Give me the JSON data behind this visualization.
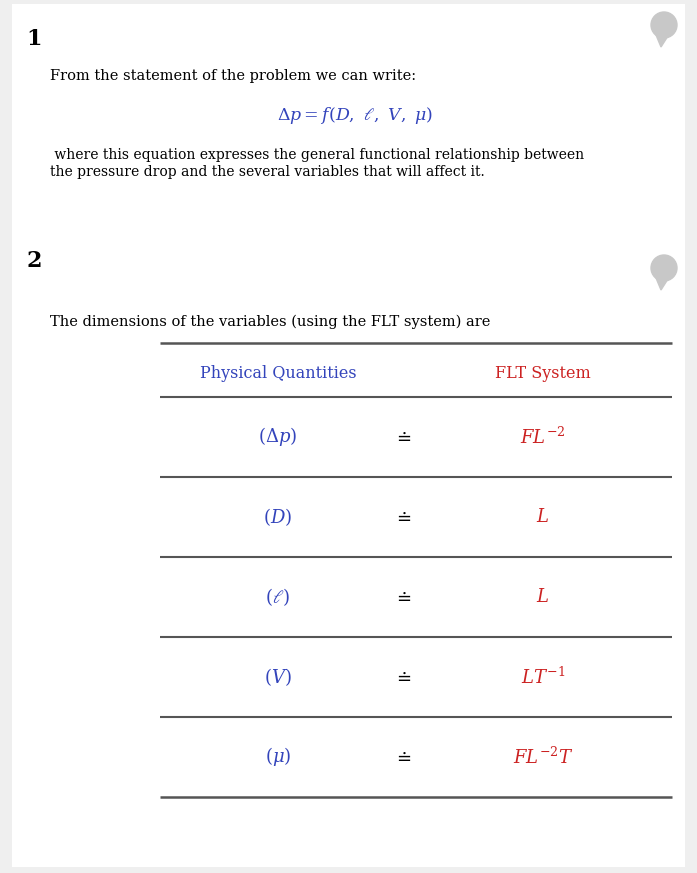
{
  "bg_color": "#efefef",
  "content_bg": "#ffffff",
  "section1_number": "1",
  "section2_number": "2",
  "text1": "From the statement of the problem we can write:",
  "equation": "$\\Delta p = f(D,\\ \\ell,\\ V,\\ \\mu)$",
  "text2_line1": " where this equation expresses the general functional relationship between",
  "text2_line2": "the pressure drop and the several variables that will affect it.",
  "text3": "The dimensions of the variables (using the FLT system) are",
  "col1_header": "Physical Quantities",
  "col2_header": "FLT System",
  "header_color1": "#3344bb",
  "header_color2": "#cc2222",
  "row_items": [
    {
      "symbol": "$(\\Delta p)$",
      "dim": "$FL^{-2}$"
    },
    {
      "symbol": "$(D)$",
      "dim": "$L$"
    },
    {
      "symbol": "$(\\ell)$",
      "dim": "$L$"
    },
    {
      "symbol": "$(V)$",
      "dim": "$LT^{-1}$"
    },
    {
      "symbol": "$(\\mu)$",
      "dim": "$FL^{-2}T$"
    }
  ],
  "symbol_color": "#3344bb",
  "dim_color": "#cc2222",
  "equals_color": "#000000",
  "line_color": "#555555",
  "bubble_color": "#c8c8c8",
  "section_fontsize": 16,
  "body_fontsize": 10.5,
  "eq_fontsize": 12.5,
  "table_fontsize": 13,
  "header_fontsize": 11.5
}
